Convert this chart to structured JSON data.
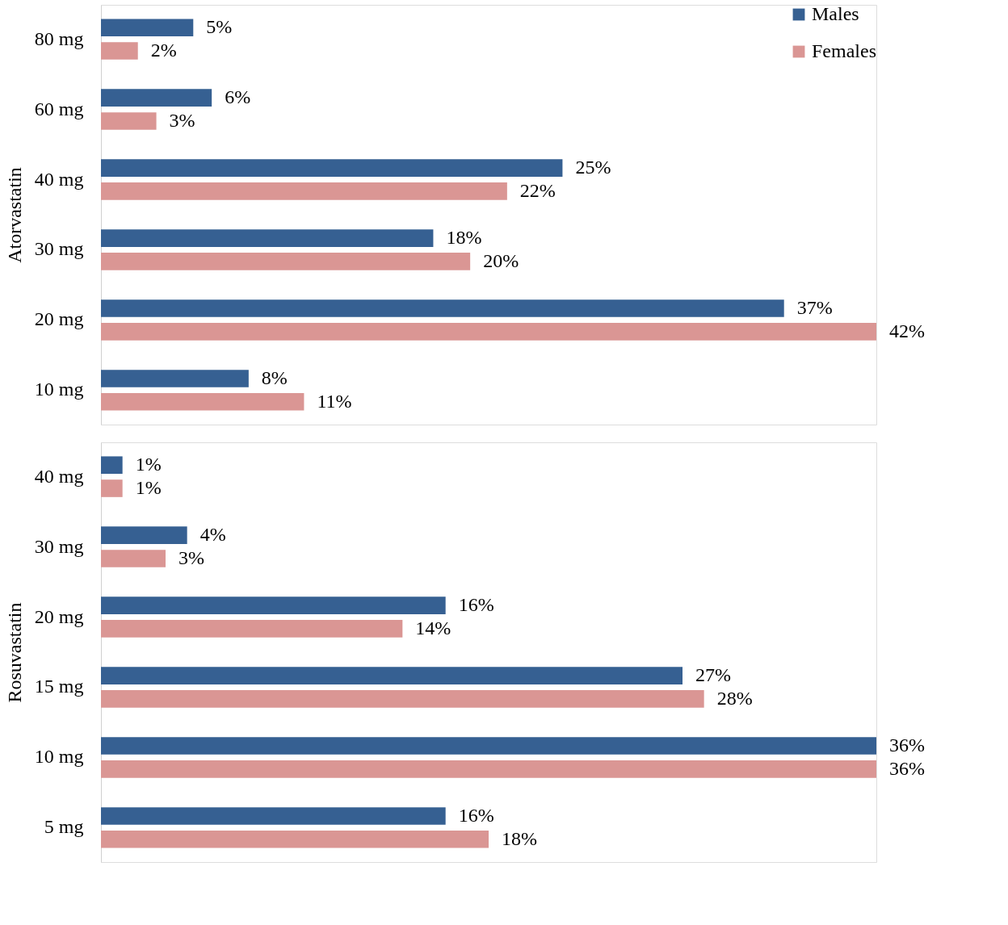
{
  "chart_data": [
    {
      "type": "bar",
      "orientation": "horizontal",
      "ylabel": "Atorvastatin",
      "categories": [
        "80 mg",
        "60 mg",
        "40 mg",
        "30 mg",
        "20 mg",
        "10 mg"
      ],
      "legend": "top right",
      "series": [
        {
          "name": "Males",
          "color": "#366092",
          "values": [
            5,
            6,
            25,
            18,
            37,
            8
          ],
          "value_labels": [
            "5%",
            "6%",
            "25%",
            "18%",
            "37%",
            "8%"
          ]
        },
        {
          "name": "Females",
          "color": "#da9694",
          "values": [
            2,
            3,
            22,
            20,
            42,
            11
          ],
          "value_labels": [
            "2%",
            "3%",
            "22%",
            "20%",
            "42%",
            "11%"
          ]
        }
      ]
    },
    {
      "type": "bar",
      "orientation": "horizontal",
      "ylabel": "Rosuvastatin",
      "categories": [
        "40 mg",
        "30 mg",
        "20 mg",
        "15 mg",
        "10 mg",
        "5 mg"
      ],
      "series": [
        {
          "color": "#366092",
          "values": [
            1,
            4,
            16,
            27,
            36,
            16
          ],
          "value_labels": [
            "1%",
            "4%",
            "16%",
            "27%",
            "36%",
            "16%"
          ]
        },
        {
          "color": "#da9694",
          "values": [
            1,
            3,
            14,
            28,
            36,
            18
          ],
          "value_labels": [
            "1%",
            "3%",
            "14%",
            "28%",
            "36%",
            "18%"
          ]
        }
      ]
    }
  ]
}
